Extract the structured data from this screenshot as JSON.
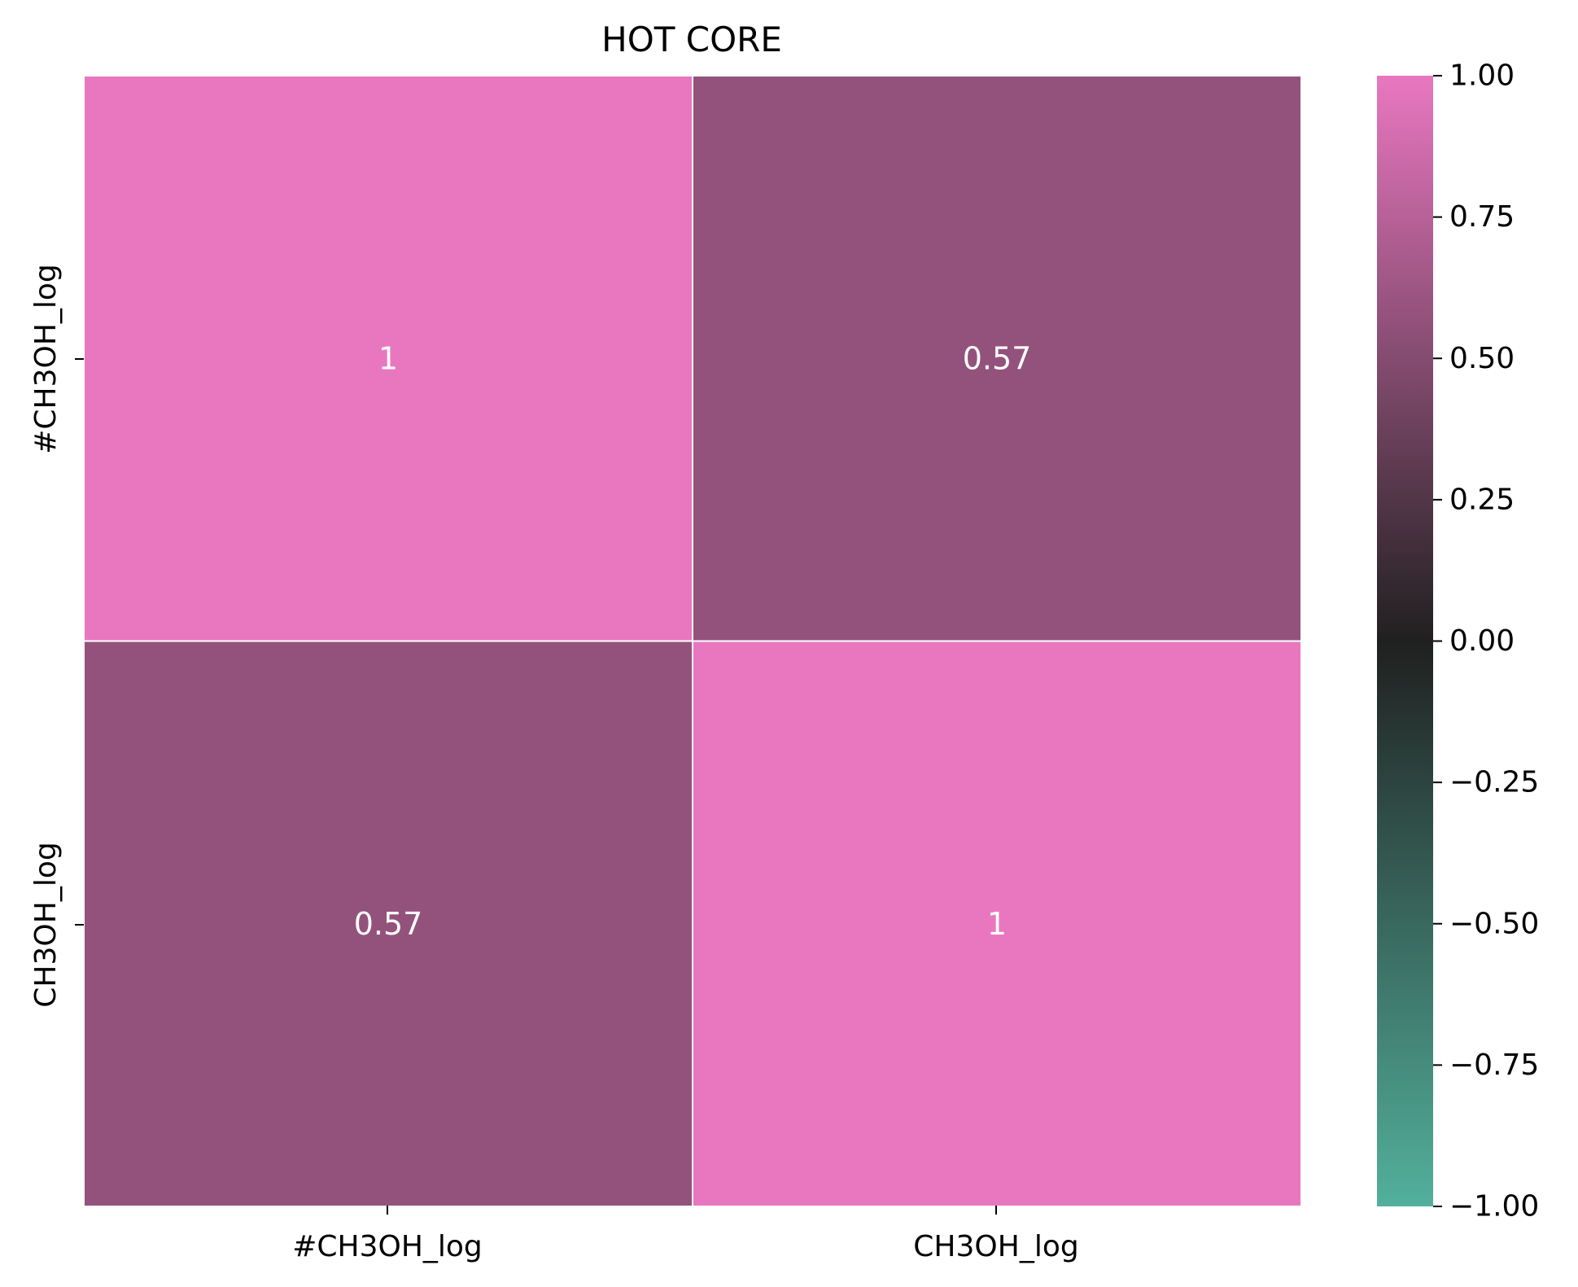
{
  "chart_data": {
    "type": "heatmap",
    "title": "HOT CORE",
    "xlabel": "",
    "ylabel": "",
    "x_categories": [
      "#CH3OH_log",
      "CH3OH_log"
    ],
    "y_categories": [
      "#CH3OH_log",
      "CH3OH_log"
    ],
    "values": [
      [
        1,
        0.57
      ],
      [
        0.57,
        1
      ]
    ],
    "annotations": [
      [
        "1",
        "0.57"
      ],
      [
        "0.57",
        "1"
      ]
    ],
    "colorbar": {
      "range": [
        -1.0,
        1.0
      ],
      "ticks": [
        1.0,
        0.75,
        0.5,
        0.25,
        0.0,
        -0.25,
        -0.5,
        -0.75,
        -1.0
      ],
      "tick_labels": [
        "1.00",
        "0.75",
        "0.50",
        "0.25",
        "0.00",
        "−0.25",
        "−0.50",
        "−0.75",
        "−1.00"
      ],
      "colors": {
        "low": "#52b09c",
        "mid": "#202020",
        "high": "#e977c0"
      }
    },
    "grid_line_color": "#ffffff",
    "annotation_color": "#ffffff"
  }
}
